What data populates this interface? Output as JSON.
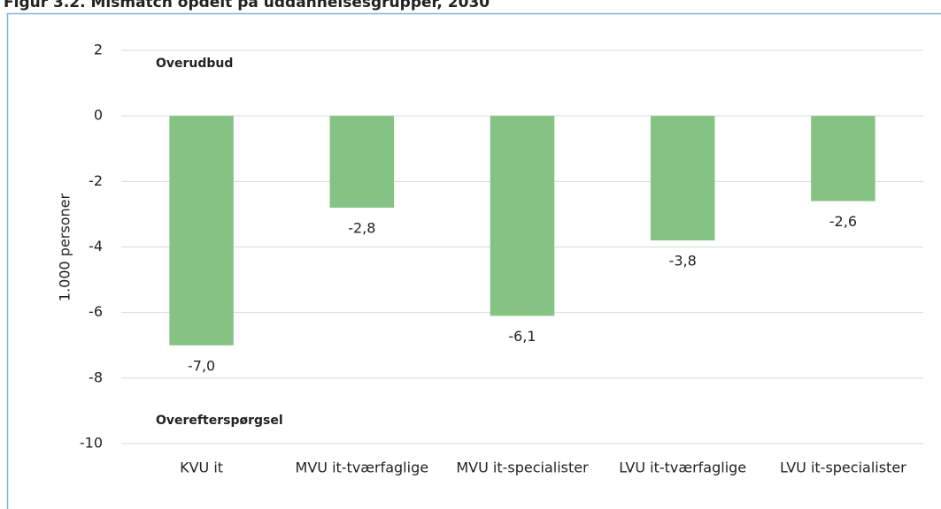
{
  "chart_data": {
    "type": "bar",
    "title": "Figur 3.2. Mismatch opdelt på uddannelsesgrupper, 2030",
    "y_label": "1.000 personer",
    "annotations": [
      "Overudbud",
      "Overefterspørgsel"
    ],
    "categories": [
      "KVU it",
      "MVU it-tværfaglige",
      "MVU it-specialister",
      "LVU it-tværfaglige",
      "LVU it-specialister"
    ],
    "values": [
      -7.0,
      -2.8,
      -6.1,
      -3.8,
      -2.6
    ],
    "value_labels": [
      "-7,0",
      "-2,8",
      "-6,1",
      "-3,8",
      "-2,6"
    ],
    "color": "#84c384",
    "ylim": [
      -10,
      2
    ],
    "yticks": [
      2,
      0,
      -2,
      -4,
      -6,
      -8,
      -10
    ],
    "grid": true
  }
}
